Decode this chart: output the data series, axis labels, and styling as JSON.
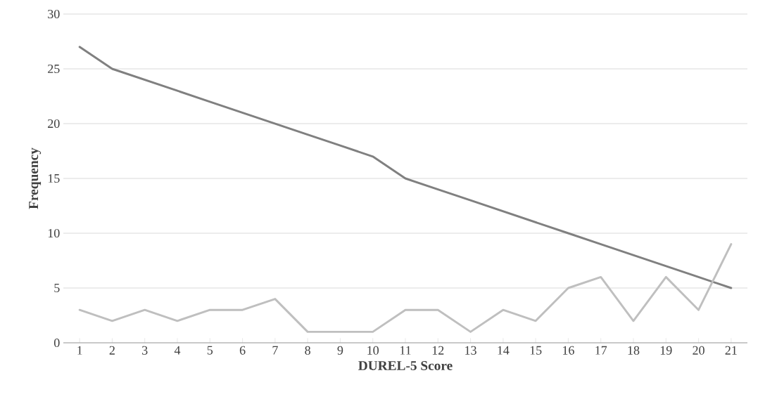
{
  "chart_data": {
    "type": "line",
    "xlabel": "DUREL-5 Score",
    "ylabel": "Frequency",
    "categories": [
      "1",
      "2",
      "3",
      "4",
      "5",
      "6",
      "7",
      "8",
      "9",
      "10",
      "11",
      "12",
      "13",
      "14",
      "15",
      "16",
      "17",
      "18",
      "19",
      "20",
      "21"
    ],
    "series": [
      {
        "color": "#808080",
        "values": [
          27,
          25,
          24,
          23,
          22,
          21,
          20,
          19,
          18,
          17,
          15,
          14,
          13,
          12,
          11,
          10,
          9,
          8,
          7,
          6,
          5
        ]
      },
      {
        "color": "#bfbfbf",
        "values": [
          3,
          2,
          3,
          2,
          3,
          3,
          4,
          1,
          1,
          1,
          3,
          3,
          1,
          3,
          2,
          5,
          6,
          2,
          6,
          3,
          9
        ]
      }
    ],
    "ylim": [
      0,
      30
    ],
    "yticks": [
      0,
      5,
      10,
      15,
      20,
      25,
      30
    ],
    "grid": "y",
    "marker": "none",
    "line_style": "solid"
  }
}
